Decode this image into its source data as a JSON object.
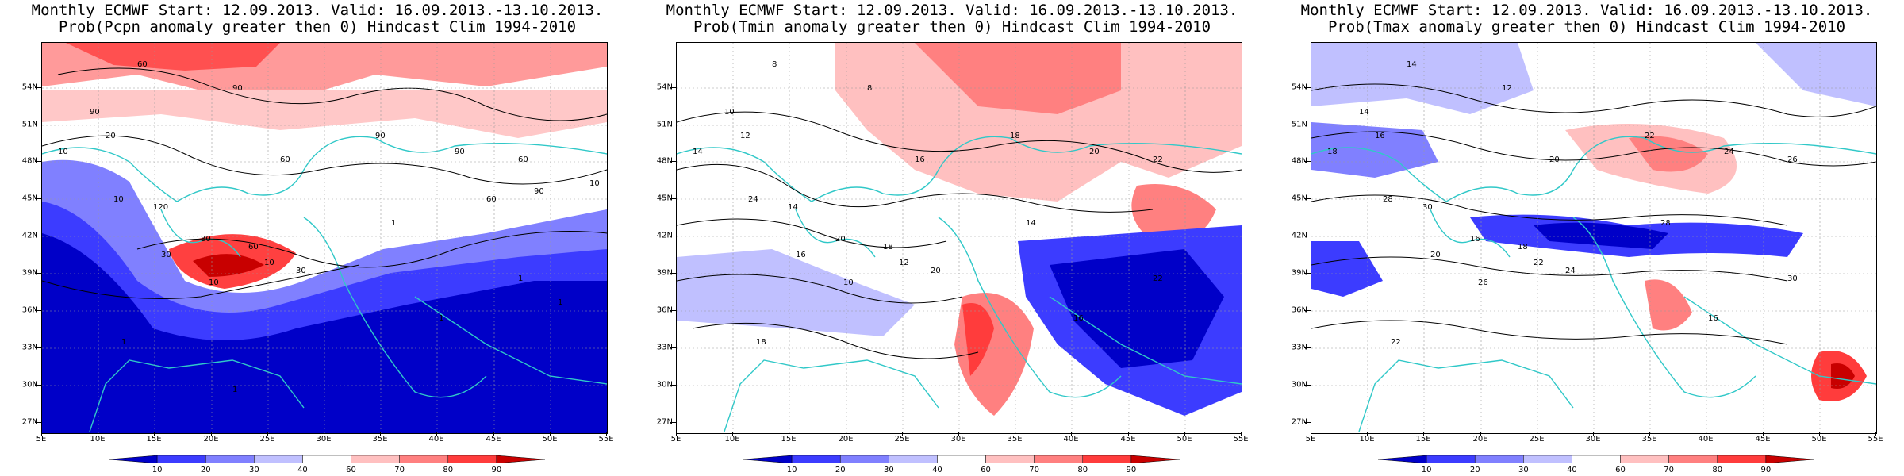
{
  "panels": [
    {
      "title_line1": "Monthly ECMWF Start: 12.09.2013. Valid: 16.09.2013.-13.10.2013.",
      "title_line2": "Prob(Pcpn anomaly greater then 0) Hindcast Clim 1994-2010",
      "variable": "precipitation",
      "contour_labels": [
        "60",
        "90",
        "90",
        "20",
        "10",
        "60",
        "90",
        "90",
        "60",
        "10",
        "120",
        "30",
        "60",
        "30",
        "10",
        "30",
        "10",
        "1",
        "1",
        "1",
        "1",
        "1",
        "1",
        "60",
        "90",
        "10"
      ]
    },
    {
      "title_line1": "Monthly ECMWF Start: 12.09.2013. Valid: 16.09.2013.-13.10.2013.",
      "title_line2": "Prob(Tmin anomaly greater then 0) Hindcast Clim 1994-2010",
      "variable": "tmin",
      "contour_labels": [
        "8",
        "8",
        "10",
        "12",
        "14",
        "16",
        "18",
        "20",
        "22",
        "24",
        "14",
        "20",
        "18",
        "16",
        "12",
        "20",
        "10",
        "14",
        "22",
        "18",
        "16"
      ]
    },
    {
      "title_line1": "Monthly ECMWF Start: 12.09.2013. Valid: 16.09.2013.-13.10.2013.",
      "title_line2": "Prob(Tmax anomaly greater then 0) Hindcast Clim 1994-2010",
      "variable": "tmax",
      "contour_labels": [
        "14",
        "12",
        "14",
        "16",
        "18",
        "20",
        "22",
        "24",
        "26",
        "28",
        "30",
        "16",
        "18",
        "20",
        "22",
        "24",
        "26",
        "28",
        "30",
        "22",
        "16"
      ]
    }
  ],
  "latitude_labels": [
    "54N",
    "51N",
    "48N",
    "45N",
    "42N",
    "39N",
    "36N",
    "33N",
    "30N",
    "27N"
  ],
  "longitude_labels": [
    "5E",
    "10E",
    "15E",
    "20E",
    "25E",
    "30E",
    "35E",
    "40E",
    "45E",
    "50E",
    "55E"
  ],
  "colorbar": {
    "labels": [
      "10",
      "20",
      "30",
      "40",
      "60",
      "70",
      "80",
      "90"
    ],
    "colors": [
      "#0000c8",
      "#3c3cff",
      "#8080ff",
      "#c0c0ff",
      "#ffffff",
      "#ffc0c0",
      "#ff8080",
      "#ff3c3c",
      "#c80000"
    ]
  }
}
